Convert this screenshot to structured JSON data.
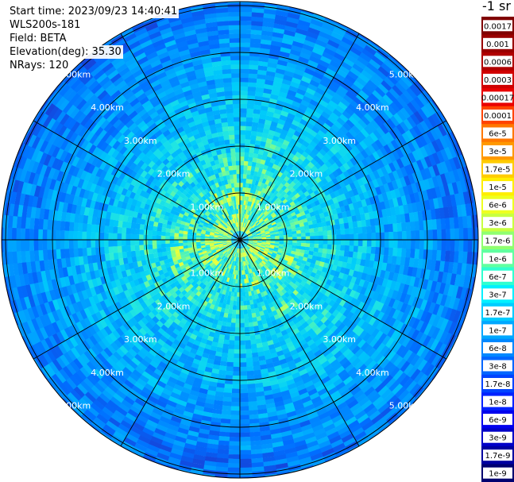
{
  "header": {
    "start_time": "Start time: 2023/09/23 14:40:41",
    "instrument": "WLS200s-181",
    "field": "Field: BETA",
    "elevation": "Elevation(deg): 35.30",
    "nrays": "NRays: 120"
  },
  "colorbar": {
    "unit": "-1 sr",
    "labels": [
      "0.0017",
      "0.001",
      "0.0006",
      "0.0003",
      "0.00017",
      "0.0001",
      "6e-5",
      "3e-5",
      "1.7e-5",
      "1e-5",
      "6e-6",
      "3e-6",
      "1.7e-6",
      "1e-6",
      "6e-7",
      "3e-7",
      "1.7e-7",
      "1e-7",
      "6e-8",
      "3e-8",
      "1.7e-8",
      "1e-8",
      "6e-9",
      "3e-9",
      "1.7e-9",
      "1e-9"
    ],
    "colors": [
      "#800000",
      "#990000",
      "#b00000",
      "#d00000",
      "#ea0000",
      "#ff4400",
      "#ff7700",
      "#ff9900",
      "#ffcc00",
      "#ffee00",
      "#eeff20",
      "#c8ff40",
      "#90ff70",
      "#60ffa0",
      "#30ffd0",
      "#00f0ff",
      "#00ccff",
      "#00a8ff",
      "#0088ff",
      "#0066ff",
      "#0044ff",
      "#0022ff",
      "#0000ee",
      "#0000c8",
      "#0000a0",
      "#000070"
    ]
  },
  "chart_data": {
    "type": "heatmap",
    "projection": "polar (PPI scan)",
    "rays": 120,
    "range_rings_km": [
      1,
      2,
      3,
      4,
      5
    ],
    "range_labels": [
      "1.00km",
      "2.00km",
      "3.00km",
      "4.00km",
      "5.00km"
    ],
    "spoke_angles_deg": [
      0,
      30,
      60,
      90,
      120,
      150,
      180,
      210,
      240,
      270,
      300,
      330
    ],
    "max_range_km": 5.8,
    "grid": true,
    "dominant_value_range": [
      "1e-7",
      "3e-7"
    ],
    "near_center_value_range": [
      "1e-6",
      "3e-6"
    ]
  }
}
